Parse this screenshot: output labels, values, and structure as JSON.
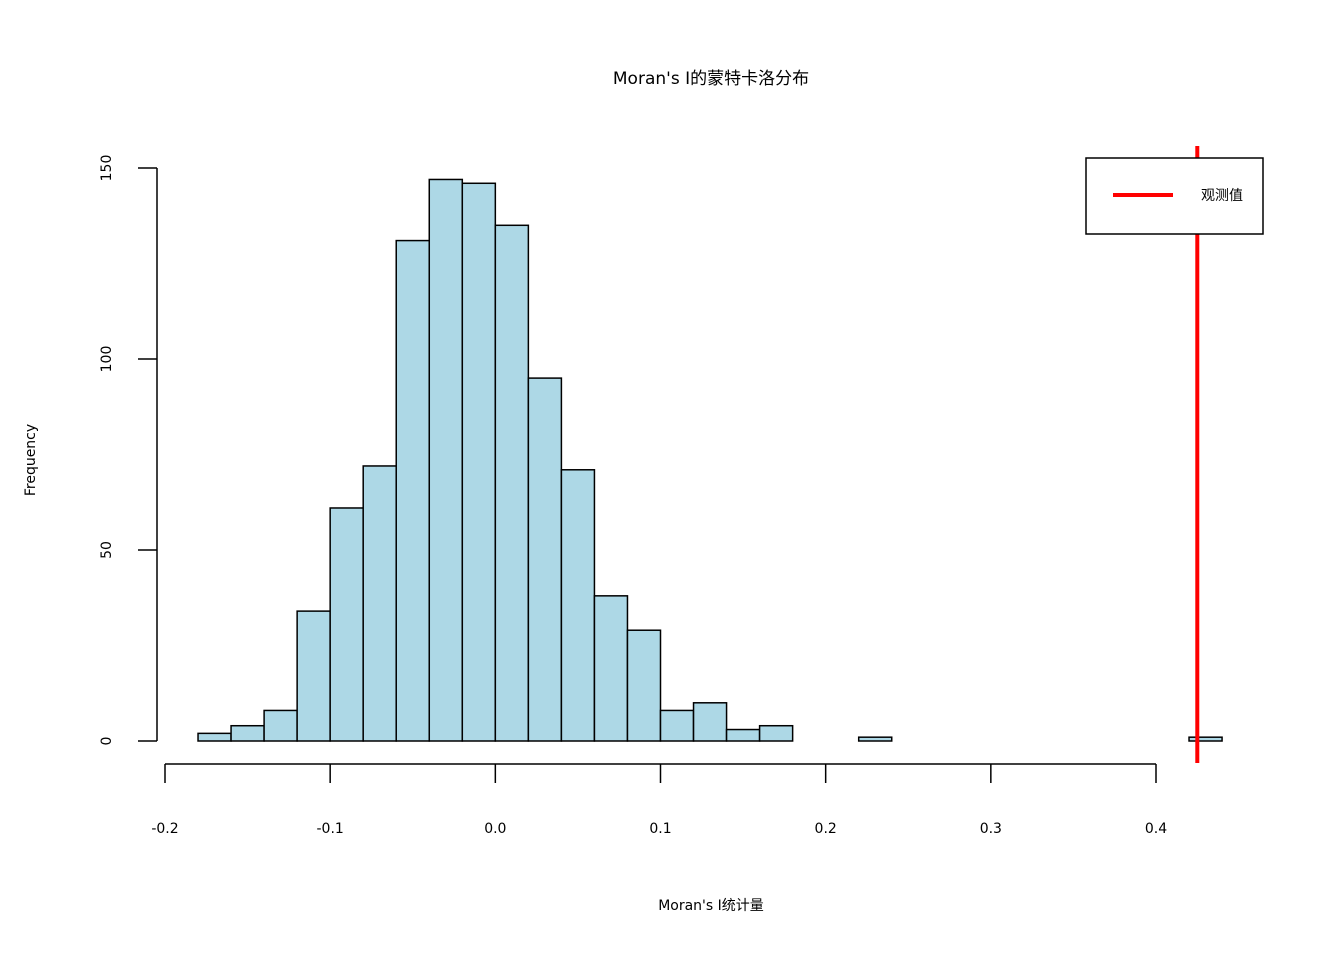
{
  "chart_data": {
    "type": "bar",
    "title": "Moran's I的蒙特卡洛分布",
    "xlabel": "Moran's I统计量",
    "ylabel": "Frequency",
    "bin_width": 0.02,
    "bin_start": -0.18,
    "values": [
      2,
      4,
      8,
      34,
      61,
      72,
      131,
      147,
      146,
      135,
      95,
      71,
      38,
      29,
      8,
      10,
      3,
      4,
      0,
      0,
      1,
      0,
      0,
      0,
      0,
      0,
      0,
      0,
      0,
      0,
      1
    ],
    "xlim": [
      -0.2,
      0.4
    ],
    "ylim": [
      0,
      150
    ],
    "x_ticks": [
      "-0.2",
      "-0.1",
      "0.0",
      "0.1",
      "0.2",
      "0.3",
      "0.4"
    ],
    "x_tick_values": [
      -0.2,
      -0.1,
      0.0,
      0.1,
      0.2,
      0.3,
      0.4
    ],
    "y_ticks": [
      "0",
      "50",
      "100",
      "150"
    ],
    "y_tick_values": [
      0,
      50,
      100,
      150
    ],
    "bar_color": "#ADD8E6",
    "observed": {
      "label": "观测值",
      "value": 0.425,
      "color": "#FF0000"
    },
    "legend_position": "top-right",
    "grid": false
  }
}
